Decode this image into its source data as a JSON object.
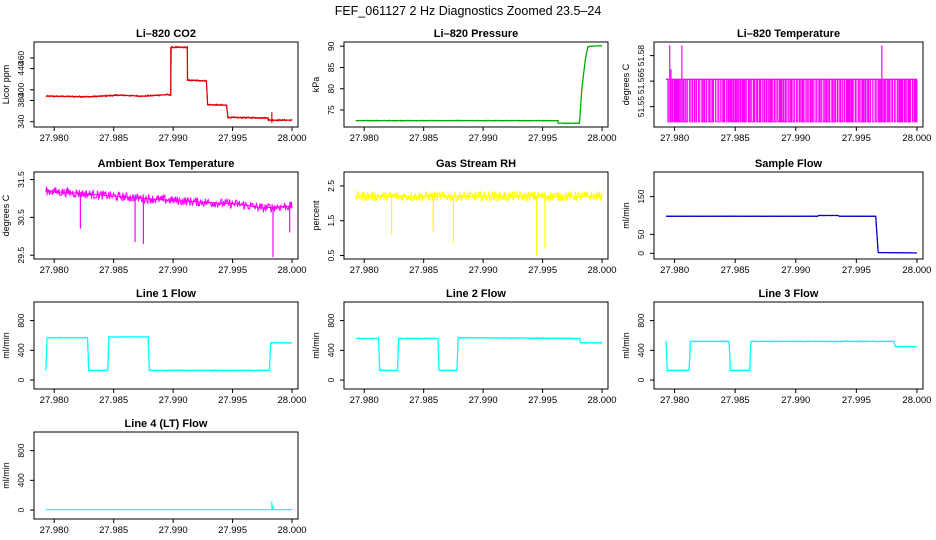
{
  "title": "FEF_061127  2 Hz Diagnostics Zoomed 23.5–24",
  "colors": {
    "red": "#e00000",
    "green": "#00b000",
    "magenta": "#ff00ff",
    "yellow": "#ffff00",
    "blue": "#0000c8",
    "cyan": "#00ffff"
  },
  "chart_data": [
    {
      "type": "line",
      "title": "Li–820 CO2",
      "ylabel": "Licor ppm",
      "color": "red",
      "xlim": [
        27.9783,
        28.0005
      ],
      "xticks": [
        27.98,
        27.985,
        27.99,
        27.995,
        28.0
      ],
      "ylim": [
        330,
        490
      ],
      "yticks": [
        340,
        380,
        400,
        440,
        460
      ],
      "noise": 1.5,
      "x": [
        27.9793,
        27.983,
        27.9855,
        27.9875,
        27.9895,
        27.9898,
        27.9898,
        27.9912,
        27.9912,
        27.9928,
        27.9929,
        27.9945,
        27.9946,
        27.998,
        27.998,
        28.0
      ],
      "y": [
        388,
        387,
        390,
        388,
        391,
        390,
        480,
        480,
        418,
        417,
        372,
        371,
        348,
        347,
        343,
        343
      ],
      "spikes": [
        {
          "x": 27.9983,
          "y": 358
        },
        {
          "x": 27.9983,
          "y": 338
        }
      ]
    },
    {
      "type": "line",
      "title": "Li–820 Pressure",
      "ylabel": "kPa",
      "color": "green",
      "xlim": [
        27.9783,
        28.0005
      ],
      "xticks": [
        27.98,
        27.985,
        27.99,
        27.995,
        28.0
      ],
      "ylim": [
        71,
        91
      ],
      "yticks": [
        75,
        80,
        85,
        90
      ],
      "noise": 0.1,
      "x": [
        27.9793,
        27.9963,
        27.9963,
        27.9981,
        27.9983,
        27.9986,
        27.9988,
        27.9995,
        28.0
      ],
      "y": [
        72.5,
        72.5,
        71.9,
        71.9,
        80,
        87,
        89.9,
        90.1,
        90.1
      ],
      "spikes": []
    },
    {
      "type": "line",
      "title": "Li–820 Temperature",
      "ylabel": "degrees C",
      "color": "magenta",
      "xlim": [
        27.9783,
        28.0005
      ],
      "xticks": [
        27.98,
        27.985,
        27.99,
        27.995,
        28.0
      ],
      "ylim": [
        51.538,
        51.588
      ],
      "yticks": [
        51.55,
        51.565,
        51.58
      ],
      "noise": 0,
      "x": [
        27.9793,
        28.0
      ],
      "y": [
        51.566,
        51.566
      ],
      "toggle": {
        "from": 27.9793,
        "to": 28.0,
        "low": 51.541,
        "high": 51.566
      },
      "spikes": [
        {
          "x": 27.9796,
          "y": 51.586
        },
        {
          "x": 27.9806,
          "y": 51.586
        },
        {
          "x": 27.9971,
          "y": 51.586
        },
        {
          "x": 27.9797,
          "y": 51.572
        }
      ]
    },
    {
      "type": "line",
      "title": "Ambient Box Temperature",
      "ylabel": "degrees C",
      "color": "magenta",
      "xlim": [
        27.9783,
        28.0005
      ],
      "xticks": [
        27.98,
        27.985,
        27.99,
        27.995,
        28.0
      ],
      "ylim": [
        29.4,
        31.7
      ],
      "yticks": [
        29.5,
        30.5,
        31.5
      ],
      "noise": 0.12,
      "x": [
        27.9793,
        27.9835,
        27.9875,
        27.9925,
        27.9955,
        27.9975,
        28.0
      ],
      "y": [
        31.2,
        31.1,
        31.0,
        30.9,
        30.85,
        30.75,
        30.8
      ],
      "spikes": [
        {
          "x": 27.9822,
          "y": 30.2
        },
        {
          "x": 27.9868,
          "y": 29.85
        },
        {
          "x": 27.9875,
          "y": 29.8
        },
        {
          "x": 27.9984,
          "y": 29.45
        },
        {
          "x": 27.9998,
          "y": 30.1
        }
      ]
    },
    {
      "type": "line",
      "title": "Gas Stream RH",
      "ylabel": "percent",
      "color": "yellow",
      "xlim": [
        27.9783,
        28.0005
      ],
      "xticks": [
        27.98,
        27.985,
        27.99,
        27.995,
        28.0
      ],
      "ylim": [
        0.4,
        2.9
      ],
      "yticks": [
        0.5,
        1.5,
        2.5
      ],
      "noise": 0.14,
      "x": [
        27.9793,
        28.0
      ],
      "y": [
        2.2,
        2.2
      ],
      "spikes": [
        {
          "x": 27.9823,
          "y": 1.1
        },
        {
          "x": 27.9858,
          "y": 1.2
        },
        {
          "x": 27.9875,
          "y": 0.9
        },
        {
          "x": 27.9945,
          "y": 0.5
        },
        {
          "x": 27.9952,
          "y": 0.7
        }
      ]
    },
    {
      "type": "line",
      "title": "Sample Flow",
      "ylabel": "ml/min",
      "color": "blue",
      "xlim": [
        27.9783,
        28.0005
      ],
      "xticks": [
        27.98,
        27.985,
        27.99,
        27.995,
        28.0
      ],
      "ylim": [
        -15,
        215
      ],
      "yticks": [
        0,
        50,
        150
      ],
      "noise": 0.6,
      "x": [
        27.9793,
        27.9918,
        27.9919,
        27.9935,
        27.9936,
        27.9966,
        27.9968,
        28.0
      ],
      "y": [
        98,
        98,
        100,
        100,
        98,
        98,
        2,
        1
      ],
      "spikes": []
    },
    {
      "type": "line",
      "title": "Line 1 Flow",
      "ylabel": "ml/min",
      "color": "cyan",
      "xlim": [
        27.9783,
        28.0005
      ],
      "xticks": [
        27.98,
        27.985,
        27.99,
        27.995,
        28.0
      ],
      "ylim": [
        -120,
        1050
      ],
      "yticks": [
        0,
        400,
        800
      ],
      "noise": 7,
      "x": [
        27.9793,
        27.9794,
        27.9828,
        27.9829,
        27.9845,
        27.9846,
        27.9879,
        27.988,
        27.9981,
        27.9982,
        28.0
      ],
      "y": [
        130,
        570,
        570,
        130,
        130,
        580,
        580,
        130,
        130,
        500,
        500
      ],
      "spikes": []
    },
    {
      "type": "line",
      "title": "Line 2 Flow",
      "ylabel": "ml/min",
      "color": "cyan",
      "xlim": [
        27.9783,
        28.0005
      ],
      "xticks": [
        27.98,
        27.985,
        27.99,
        27.995,
        28.0
      ],
      "ylim": [
        -120,
        1050
      ],
      "yticks": [
        0,
        400,
        800
      ],
      "noise": 7,
      "x": [
        27.9793,
        27.9812,
        27.9813,
        27.9828,
        27.9829,
        27.9862,
        27.9863,
        27.9878,
        27.9879,
        27.9981,
        27.9982,
        28.0
      ],
      "y": [
        560,
        560,
        130,
        130,
        560,
        560,
        130,
        130,
        570,
        560,
        500,
        500
      ],
      "spikes": []
    },
    {
      "type": "line",
      "title": "Line 3 Flow",
      "ylabel": "ml/min",
      "color": "cyan",
      "xlim": [
        27.9783,
        28.0005
      ],
      "xticks": [
        27.98,
        27.985,
        27.99,
        27.995,
        28.0
      ],
      "ylim": [
        -120,
        1050
      ],
      "yticks": [
        0,
        400,
        800
      ],
      "noise": 7,
      "x": [
        27.9793,
        27.9794,
        27.9812,
        27.9813,
        27.9845,
        27.9846,
        27.9862,
        27.9863,
        27.9981,
        27.9982,
        28.0
      ],
      "y": [
        520,
        130,
        130,
        520,
        520,
        130,
        130,
        520,
        520,
        450,
        450
      ],
      "spikes": []
    },
    {
      "type": "line",
      "title": "Line 4 (LT) Flow",
      "ylabel": "ml/min",
      "color": "cyan",
      "xlim": [
        27.9783,
        28.0005
      ],
      "xticks": [
        27.98,
        27.985,
        27.99,
        27.995,
        28.0
      ],
      "ylim": [
        -120,
        1050
      ],
      "yticks": [
        0,
        400,
        800
      ],
      "noise": 0,
      "x": [
        27.9793,
        28.0
      ],
      "y": [
        5,
        5
      ],
      "spikes": [
        {
          "x": 27.9983,
          "y": 120
        },
        {
          "x": 27.9984,
          "y": 60
        }
      ]
    }
  ]
}
